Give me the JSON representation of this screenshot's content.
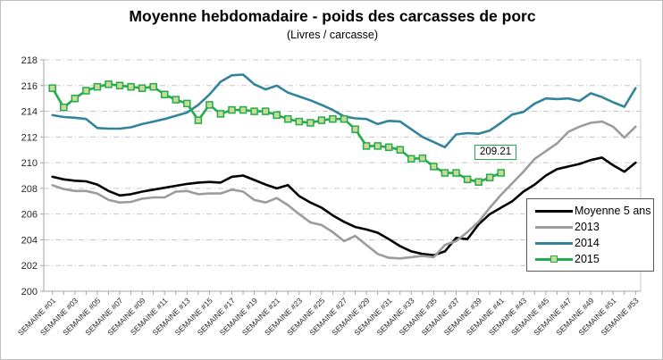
{
  "chart_data": {
    "type": "line",
    "title": "Moyenne hebdomadaire - poids des carcasses de porc",
    "subtitle": "(Livres / carcasse)",
    "ylim": [
      200,
      218
    ],
    "y_tick_step": 2,
    "y_tick_labels": [
      "200",
      "202",
      "204",
      "206",
      "208",
      "210",
      "212",
      "214",
      "216",
      "218"
    ],
    "x_tick_labels": [
      "SEMAINE #01",
      "SEMAINE #03",
      "SEMAINE #05",
      "SEMAINE #07",
      "SEMAINE #09",
      "SEMAINE #11",
      "SEMAINE #13",
      "SEMAINE #15",
      "SEMAINE #17",
      "SEMAINE #19",
      "SEMAINE #21",
      "SEMAINE #23",
      "SEMAINE #25",
      "SEMAINE #27",
      "SEMAINE #29",
      "SEMAINE #31",
      "SEMAINE #33",
      "SEMAINE #35",
      "SEMAINE #37",
      "SEMAINE #39",
      "SEMAINE #41",
      "SEMAINE #43",
      "SEMAINE #45",
      "SEMAINE #47",
      "SEMAINE #49",
      "SEMAINE #51",
      "SEMAINE #53"
    ],
    "weeks_total": 53,
    "grid": "horizontal, dash-dot, light gray",
    "legend_position": "inside-right",
    "series": [
      {
        "name": "Moyenne 5 ans",
        "color": "#000000",
        "marker": "none",
        "values": [
          208.9,
          208.7,
          208.6,
          208.55,
          208.3,
          207.8,
          207.45,
          207.55,
          207.75,
          207.9,
          208.05,
          208.2,
          208.35,
          208.45,
          208.5,
          208.45,
          208.9,
          209.0,
          208.65,
          208.3,
          208.0,
          208.25,
          207.4,
          206.9,
          206.5,
          205.9,
          205.4,
          205.0,
          204.8,
          204.55,
          204.05,
          203.5,
          203.1,
          202.9,
          202.8,
          203.1,
          204.15,
          204.05,
          205.2,
          206.0,
          206.5,
          207.0,
          207.75,
          208.3,
          209.0,
          209.5,
          209.7,
          209.9,
          210.2,
          210.4,
          209.8,
          209.3,
          210.0
        ]
      },
      {
        "name": "2013",
        "color": "#9c9c9c",
        "marker": "none",
        "values": [
          208.25,
          207.95,
          207.8,
          207.8,
          207.6,
          207.1,
          206.9,
          206.95,
          207.2,
          207.3,
          207.3,
          207.75,
          207.8,
          207.55,
          207.6,
          207.6,
          207.9,
          207.75,
          207.1,
          206.9,
          207.25,
          206.7,
          206.0,
          205.35,
          205.15,
          204.6,
          203.9,
          204.3,
          203.6,
          202.9,
          202.6,
          202.55,
          202.65,
          202.75,
          202.65,
          203.6,
          203.9,
          204.6,
          205.4,
          206.5,
          207.5,
          208.4,
          209.3,
          210.3,
          210.9,
          211.5,
          212.4,
          212.8,
          213.1,
          213.2,
          212.8,
          211.95,
          212.8
        ]
      },
      {
        "name": "2014",
        "color": "#31849b",
        "marker": "none",
        "values": [
          213.7,
          213.55,
          213.5,
          213.4,
          212.7,
          212.65,
          212.65,
          212.75,
          213.0,
          213.2,
          213.4,
          213.65,
          213.9,
          214.5,
          215.3,
          216.3,
          216.8,
          216.85,
          216.1,
          215.7,
          216.0,
          215.45,
          215.15,
          214.85,
          214.5,
          214.1,
          213.6,
          213.45,
          213.4,
          213.0,
          213.25,
          213.2,
          212.6,
          212.0,
          211.6,
          211.2,
          212.2,
          212.3,
          212.25,
          212.5,
          213.1,
          213.75,
          213.95,
          214.6,
          215.0,
          214.95,
          215.0,
          214.8,
          215.4,
          215.1,
          214.7,
          214.35,
          215.8
        ]
      },
      {
        "name": "2015",
        "color": "#23ac4a",
        "marker": "square",
        "marker_fill": "#cbd99a",
        "values": [
          215.8,
          214.3,
          215.0,
          215.6,
          215.9,
          216.1,
          216.0,
          215.9,
          215.8,
          215.9,
          215.3,
          214.9,
          214.6,
          213.3,
          214.5,
          213.8,
          214.1,
          214.1,
          214.0,
          214.0,
          213.7,
          213.4,
          213.2,
          213.1,
          213.3,
          213.4,
          213.4,
          212.6,
          211.3,
          211.3,
          211.2,
          211.0,
          210.3,
          210.35,
          209.7,
          209.2,
          209.2,
          208.7,
          208.5,
          208.85,
          209.21
        ]
      }
    ],
    "annotation": {
      "text": "209.21",
      "series": "2015",
      "week": 41
    }
  }
}
